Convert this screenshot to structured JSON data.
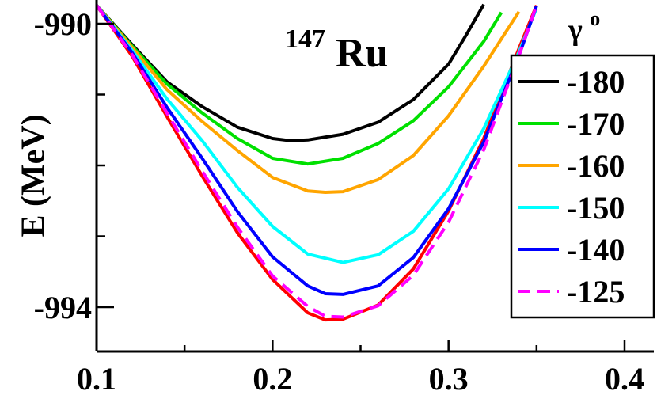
{
  "chart_data": {
    "type": "line",
    "title_superscript": "147",
    "title_main": "Ru",
    "ylabel": "E (MeV)",
    "xlabel": "",
    "xlim": [
      0.1,
      0.42
    ],
    "ylim": [
      -994.4,
      -989.8
    ],
    "x_ticks": [
      {
        "value": 0.1,
        "label": "0.1"
      },
      {
        "value": 0.2,
        "label": "0.2"
      },
      {
        "value": 0.3,
        "label": "0.3"
      },
      {
        "value": 0.4,
        "label": "0.4"
      }
    ],
    "y_ticks": [
      {
        "value": -990,
        "label": "-990"
      },
      {
        "value": -994,
        "label": "-994"
      }
    ],
    "legend": {
      "title_main": "γ",
      "title_superscript": "o",
      "placement": "top-right"
    },
    "series": [
      {
        "name": "-180",
        "color": "#000000",
        "dash": false,
        "in_legend": true,
        "points": [
          [
            0.1,
            -989.74
          ],
          [
            0.12,
            -990.29
          ],
          [
            0.14,
            -990.82
          ],
          [
            0.16,
            -991.17
          ],
          [
            0.18,
            -991.46
          ],
          [
            0.2,
            -991.62
          ],
          [
            0.21,
            -991.65
          ],
          [
            0.22,
            -991.64
          ],
          [
            0.24,
            -991.56
          ],
          [
            0.26,
            -991.39
          ],
          [
            0.28,
            -991.07
          ],
          [
            0.3,
            -990.57
          ],
          [
            0.31,
            -990.16
          ],
          [
            0.32,
            -989.73
          ]
        ]
      },
      {
        "name": "-170",
        "color": "#00e000",
        "dash": false,
        "in_legend": true,
        "points": [
          [
            0.1,
            -989.74
          ],
          [
            0.12,
            -990.31
          ],
          [
            0.14,
            -990.85
          ],
          [
            0.16,
            -991.26
          ],
          [
            0.18,
            -991.62
          ],
          [
            0.2,
            -991.9
          ],
          [
            0.22,
            -991.98
          ],
          [
            0.24,
            -991.9
          ],
          [
            0.26,
            -991.69
          ],
          [
            0.28,
            -991.37
          ],
          [
            0.3,
            -990.89
          ],
          [
            0.32,
            -990.25
          ],
          [
            0.33,
            -989.84
          ]
        ]
      },
      {
        "name": "-160",
        "color": "#ffa500",
        "dash": false,
        "in_legend": true,
        "points": [
          [
            0.1,
            -989.74
          ],
          [
            0.12,
            -990.33
          ],
          [
            0.14,
            -990.93
          ],
          [
            0.16,
            -991.38
          ],
          [
            0.18,
            -991.79
          ],
          [
            0.2,
            -992.17
          ],
          [
            0.22,
            -992.36
          ],
          [
            0.23,
            -992.38
          ],
          [
            0.24,
            -992.37
          ],
          [
            0.26,
            -992.2
          ],
          [
            0.28,
            -991.86
          ],
          [
            0.3,
            -991.3
          ],
          [
            0.32,
            -990.6
          ],
          [
            0.34,
            -989.83
          ]
        ]
      },
      {
        "name": "-150",
        "color": "#00ffff",
        "dash": false,
        "in_legend": true,
        "points": [
          [
            0.1,
            -989.74
          ],
          [
            0.12,
            -990.37
          ],
          [
            0.14,
            -991.06
          ],
          [
            0.16,
            -991.65
          ],
          [
            0.18,
            -992.31
          ],
          [
            0.2,
            -992.86
          ],
          [
            0.22,
            -993.25
          ],
          [
            0.24,
            -993.37
          ],
          [
            0.26,
            -993.26
          ],
          [
            0.28,
            -992.93
          ],
          [
            0.3,
            -992.33
          ],
          [
            0.32,
            -991.48
          ],
          [
            0.34,
            -990.4
          ],
          [
            0.35,
            -989.78
          ]
        ]
      },
      {
        "name": "-140",
        "color": "#0000ff",
        "dash": false,
        "in_legend": true,
        "points": [
          [
            0.1,
            -989.74
          ],
          [
            0.12,
            -990.4
          ],
          [
            0.14,
            -991.18
          ],
          [
            0.16,
            -991.9
          ],
          [
            0.18,
            -992.65
          ],
          [
            0.2,
            -993.29
          ],
          [
            0.22,
            -993.7
          ],
          [
            0.23,
            -993.81
          ],
          [
            0.24,
            -993.82
          ],
          [
            0.26,
            -993.7
          ],
          [
            0.28,
            -993.3
          ],
          [
            0.3,
            -992.61
          ],
          [
            0.32,
            -991.67
          ],
          [
            0.34,
            -990.45
          ],
          [
            0.35,
            -989.75
          ]
        ]
      },
      {
        "name": "-125",
        "color": "#ff00ff",
        "dash": true,
        "in_legend": true,
        "points": [
          [
            0.1,
            -989.74
          ],
          [
            0.12,
            -990.43
          ],
          [
            0.14,
            -991.26
          ],
          [
            0.16,
            -992.08
          ],
          [
            0.18,
            -992.87
          ],
          [
            0.2,
            -993.56
          ],
          [
            0.22,
            -993.99
          ],
          [
            0.23,
            -994.13
          ],
          [
            0.24,
            -994.14
          ],
          [
            0.26,
            -993.98
          ],
          [
            0.28,
            -993.55
          ],
          [
            0.3,
            -992.8
          ],
          [
            0.32,
            -991.78
          ],
          [
            0.34,
            -990.45
          ],
          [
            0.35,
            -989.74
          ]
        ]
      },
      {
        "name": "",
        "color": "#ff0000",
        "dash": false,
        "in_legend": false,
        "points": [
          [
            0.1,
            -989.74
          ],
          [
            0.12,
            -990.45
          ],
          [
            0.14,
            -991.31
          ],
          [
            0.16,
            -992.15
          ],
          [
            0.18,
            -992.95
          ],
          [
            0.2,
            -993.61
          ],
          [
            0.22,
            -994.08
          ],
          [
            0.23,
            -994.18
          ],
          [
            0.24,
            -994.17
          ],
          [
            0.26,
            -993.97
          ],
          [
            0.28,
            -993.46
          ],
          [
            0.3,
            -992.64
          ],
          [
            0.32,
            -991.62
          ],
          [
            0.34,
            -990.35
          ],
          [
            0.35,
            -989.74
          ]
        ]
      }
    ]
  }
}
